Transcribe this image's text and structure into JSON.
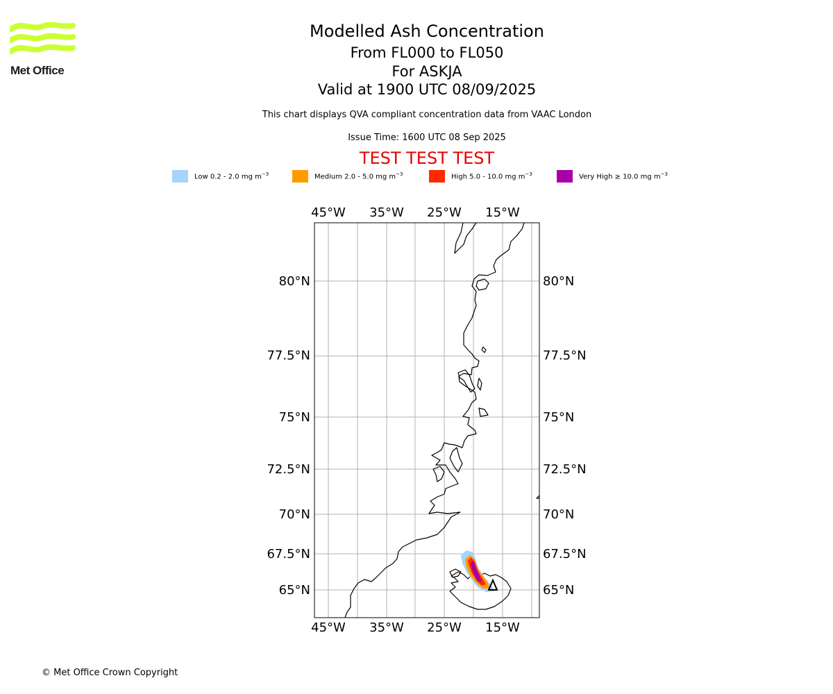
{
  "branding": {
    "logo_text": "Met Office",
    "logo_color": "#ccff33"
  },
  "header": {
    "title": "Modelled Ash Concentration",
    "flight_levels": "From FL000 to FL050",
    "volcano": "For ASKJA",
    "valid_time": "Valid at 1900 UTC 08/09/2025",
    "note": "This chart displays QVA compliant concentration data from VAAC London",
    "issue_time": "Issue Time: 1600 UTC 08 Sep 2025",
    "test_banner": "TEST TEST TEST",
    "test_color": "#e60000"
  },
  "legend": [
    {
      "label": "Low 0.2 - 2.0 mg m",
      "unit_exp": "−3",
      "color": "#a6d4fa"
    },
    {
      "label": "Medium 2.0 - 5.0 mg m",
      "unit_exp": "−3",
      "color": "#ff9a00"
    },
    {
      "label": "High 5.0 - 10.0 mg m",
      "unit_exp": "−3",
      "color": "#ff2800"
    },
    {
      "label": "Very High  ≥  10.0 mg m",
      "unit_exp": "−3",
      "color": "#a800a8"
    }
  ],
  "map": {
    "lon_labels": [
      "45°W",
      "35°W",
      "25°W",
      "15°W"
    ],
    "lat_labels": [
      "80°N",
      "77.5°N",
      "75°N",
      "72.5°N",
      "70°N",
      "67.5°N",
      "65°N"
    ],
    "gridlines": true,
    "coastline_color": "#000000",
    "grid_color": "#b0b0b0",
    "ash_plume": {
      "extent_lat": [
        65.0,
        67.6
      ],
      "extent_lon": [
        -22.5,
        -17.5
      ],
      "levels": [
        "low",
        "medium",
        "high",
        "very-high"
      ]
    }
  },
  "footer": {
    "copyright": "© Met Office Crown Copyright"
  }
}
